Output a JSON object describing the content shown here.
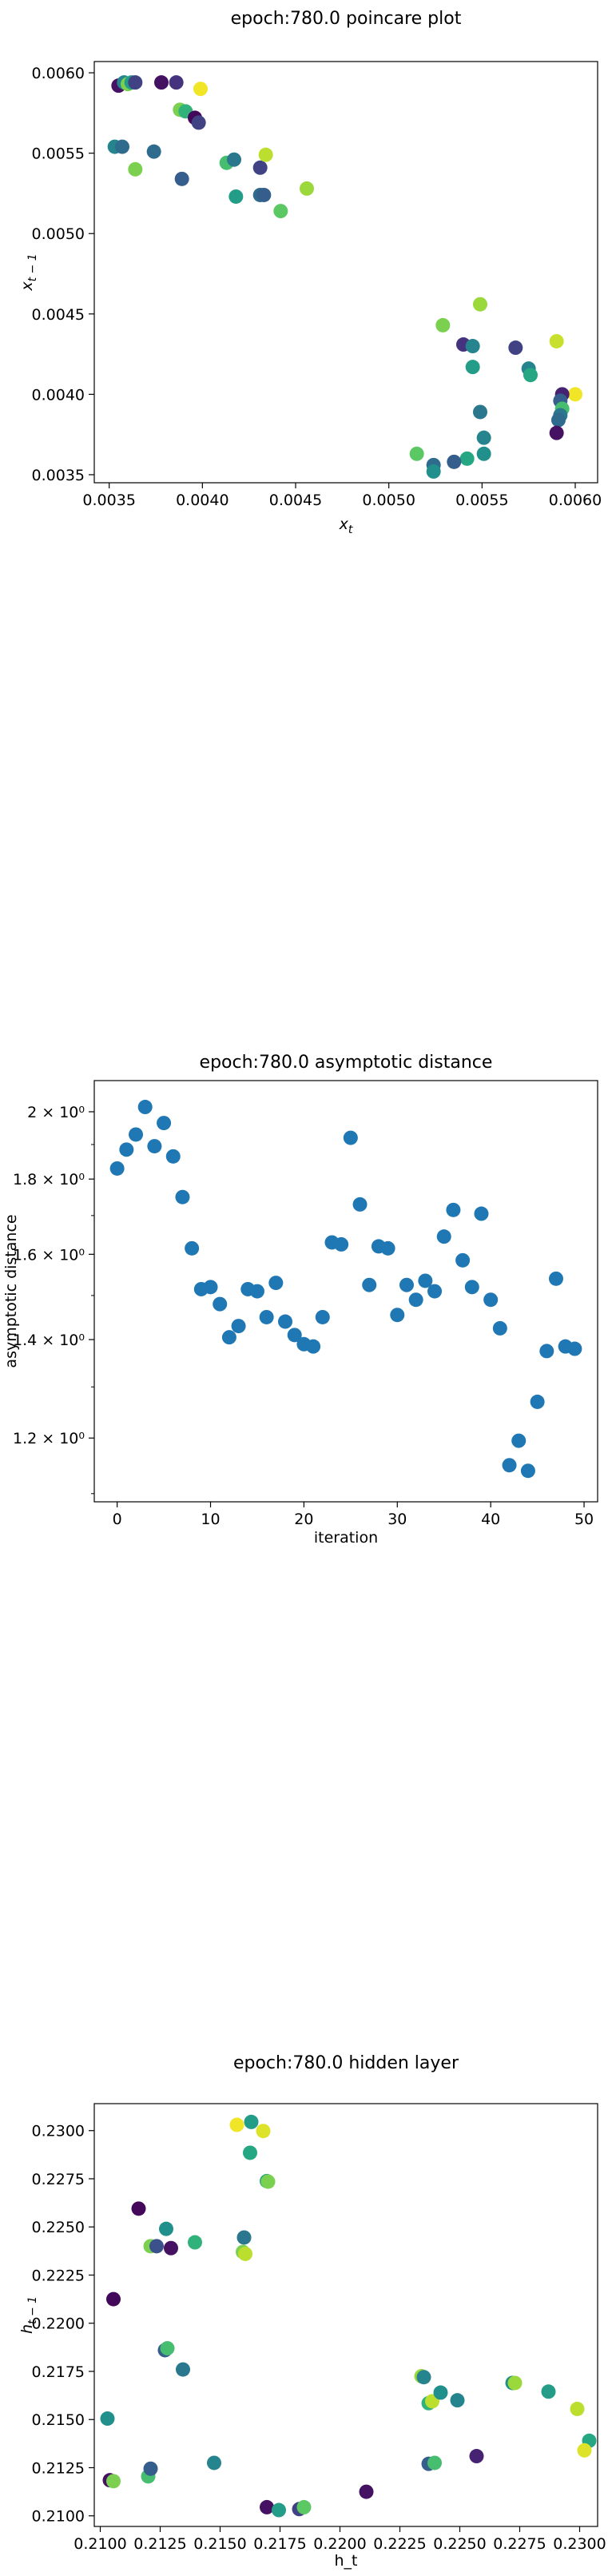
{
  "chart_data": [
    {
      "type": "scatter",
      "title": "epoch:780.0 poincare plot",
      "xlabel": "x_t",
      "ylabel": "x_{t-1}",
      "xlim": [
        0.00342,
        0.00612
      ],
      "ylim": [
        0.00345,
        0.00607
      ],
      "xticks": [
        0.0035,
        0.004,
        0.0045,
        0.005,
        0.0055,
        0.006
      ],
      "xtick_labels": [
        "0.0035",
        "0.0040",
        "0.0045",
        "0.0050",
        "0.0055",
        "0.0060"
      ],
      "yticks": [
        0.0035,
        0.004,
        0.0045,
        0.005,
        0.0055,
        0.006
      ],
      "ytick_labels": [
        "0.0035",
        "0.0040",
        "0.0045",
        "0.0050",
        "0.0055",
        "0.0060"
      ],
      "colormap": "viridis",
      "points": [
        {
          "x": 0.00355,
          "y": 0.00592,
          "c": 0.05
        },
        {
          "x": 0.00358,
          "y": 0.00594,
          "c": 0.45
        },
        {
          "x": 0.0036,
          "y": 0.00593,
          "c": 0.8
        },
        {
          "x": 0.00362,
          "y": 0.00594,
          "c": 0.55
        },
        {
          "x": 0.00364,
          "y": 0.00594,
          "c": 0.2
        },
        {
          "x": 0.00378,
          "y": 0.00594,
          "c": 0.05
        },
        {
          "x": 0.00386,
          "y": 0.00594,
          "c": 0.15
        },
        {
          "x": 0.00399,
          "y": 0.0059,
          "c": 0.98
        },
        {
          "x": 0.00388,
          "y": 0.00577,
          "c": 0.8
        },
        {
          "x": 0.00391,
          "y": 0.00576,
          "c": 0.65
        },
        {
          "x": 0.00396,
          "y": 0.00572,
          "c": 0.02
        },
        {
          "x": 0.00398,
          "y": 0.00569,
          "c": 0.2
        },
        {
          "x": 0.00353,
          "y": 0.00554,
          "c": 0.45
        },
        {
          "x": 0.00357,
          "y": 0.00554,
          "c": 0.35
        },
        {
          "x": 0.00364,
          "y": 0.0054,
          "c": 0.8
        },
        {
          "x": 0.00374,
          "y": 0.00551,
          "c": 0.35
        },
        {
          "x": 0.00389,
          "y": 0.00534,
          "c": 0.3
        },
        {
          "x": 0.00413,
          "y": 0.00544,
          "c": 0.7
        },
        {
          "x": 0.00417,
          "y": 0.00546,
          "c": 0.4
        },
        {
          "x": 0.00431,
          "y": 0.00541,
          "c": 0.2
        },
        {
          "x": 0.00434,
          "y": 0.00549,
          "c": 0.9
        },
        {
          "x": 0.00418,
          "y": 0.00523,
          "c": 0.55
        },
        {
          "x": 0.00431,
          "y": 0.00524,
          "c": 0.35
        },
        {
          "x": 0.00433,
          "y": 0.00524,
          "c": 0.3
        },
        {
          "x": 0.00442,
          "y": 0.00514,
          "c": 0.75
        },
        {
          "x": 0.00456,
          "y": 0.00528,
          "c": 0.85
        },
        {
          "x": 0.00549,
          "y": 0.00456,
          "c": 0.85
        },
        {
          "x": 0.00529,
          "y": 0.00443,
          "c": 0.8
        },
        {
          "x": 0.0054,
          "y": 0.00431,
          "c": 0.15
        },
        {
          "x": 0.00545,
          "y": 0.0043,
          "c": 0.45
        },
        {
          "x": 0.00568,
          "y": 0.00429,
          "c": 0.2
        },
        {
          "x": 0.0059,
          "y": 0.00433,
          "c": 0.92
        },
        {
          "x": 0.00545,
          "y": 0.00417,
          "c": 0.55
        },
        {
          "x": 0.00575,
          "y": 0.00416,
          "c": 0.45
        },
        {
          "x": 0.00576,
          "y": 0.00412,
          "c": 0.6
        },
        {
          "x": 0.006,
          "y": 0.004,
          "c": 0.98
        },
        {
          "x": 0.00593,
          "y": 0.004,
          "c": 0.1
        },
        {
          "x": 0.00592,
          "y": 0.00396,
          "c": 0.3
        },
        {
          "x": 0.00593,
          "y": 0.00391,
          "c": 0.7
        },
        {
          "x": 0.00592,
          "y": 0.00387,
          "c": 0.4
        },
        {
          "x": 0.00591,
          "y": 0.00384,
          "c": 0.35
        },
        {
          "x": 0.0059,
          "y": 0.00376,
          "c": 0.05
        },
        {
          "x": 0.00549,
          "y": 0.00389,
          "c": 0.4
        },
        {
          "x": 0.00551,
          "y": 0.00373,
          "c": 0.45
        },
        {
          "x": 0.00515,
          "y": 0.00363,
          "c": 0.75
        },
        {
          "x": 0.00542,
          "y": 0.0036,
          "c": 0.6
        },
        {
          "x": 0.00551,
          "y": 0.00363,
          "c": 0.5
        },
        {
          "x": 0.00535,
          "y": 0.00358,
          "c": 0.3
        },
        {
          "x": 0.00524,
          "y": 0.00356,
          "c": 0.35
        },
        {
          "x": 0.00524,
          "y": 0.00352,
          "c": 0.5
        }
      ]
    },
    {
      "type": "scatter",
      "title": "epoch:780.0 asymptotic distance",
      "xlabel": "iteration",
      "ylabel": "asymptotic distance",
      "yscale": "log",
      "xlim": [
        -2.45,
        51.45
      ],
      "ylim": [
        1.086,
        2.1
      ],
      "xticks": [
        0,
        10,
        20,
        30,
        40,
        50
      ],
      "xtick_labels": [
        "0",
        "10",
        "20",
        "30",
        "40",
        "50"
      ],
      "yticks": [
        1.2,
        1.4,
        1.6,
        1.8,
        2.0
      ],
      "ytick_labels": [
        "1.2 × 10⁰",
        "1.4 × 10⁰",
        "1.6 × 10⁰",
        "1.8 × 10⁰",
        "2 × 10⁰"
      ],
      "color": "#1f77b4",
      "x": [
        0,
        1,
        2,
        3,
        4,
        5,
        6,
        7,
        8,
        9,
        10,
        11,
        12,
        13,
        14,
        15,
        16,
        17,
        18,
        19,
        20,
        21,
        22,
        23,
        24,
        25,
        26,
        27,
        28,
        29,
        30,
        31,
        32,
        33,
        34,
        35,
        36,
        37,
        38,
        39,
        40,
        41,
        42,
        43,
        44,
        45,
        46,
        47,
        48,
        49
      ],
      "y": [
        1.83,
        1.885,
        1.93,
        2.015,
        1.895,
        1.965,
        1.865,
        1.75,
        1.615,
        1.515,
        1.52,
        1.48,
        1.405,
        1.43,
        1.515,
        1.51,
        1.45,
        1.53,
        1.44,
        1.41,
        1.39,
        1.385,
        1.45,
        1.63,
        1.625,
        1.92,
        1.73,
        1.525,
        1.62,
        1.615,
        1.455,
        1.525,
        1.49,
        1.535,
        1.51,
        1.645,
        1.715,
        1.585,
        1.52,
        1.705,
        1.49,
        1.425,
        1.15,
        1.195,
        1.14,
        1.27,
        1.375,
        1.54,
        1.385,
        1.38
      ]
    },
    {
      "type": "scatter",
      "title": "epoch:780.0 hidden layer",
      "xlabel": "h_t",
      "ylabel": "h_{t-1}",
      "xlim": [
        0.20975,
        0.23075
      ],
      "ylim": [
        0.20945,
        0.2314
      ],
      "xticks": [
        0.21,
        0.2125,
        0.215,
        0.2175,
        0.22,
        0.2225,
        0.225,
        0.2275,
        0.23
      ],
      "xtick_labels": [
        "0.2100",
        "0.2125",
        "0.2150",
        "0.2175",
        "0.2200",
        "0.2225",
        "0.2250",
        "0.2275",
        "0.2300"
      ],
      "yticks": [
        0.21,
        0.2125,
        0.215,
        0.2175,
        0.22,
        0.2225,
        0.225,
        0.2275,
        0.23
      ],
      "ytick_labels": [
        "0.2100",
        "0.2125",
        "0.2150",
        "0.2175",
        "0.2200",
        "0.2225",
        "0.2250",
        "0.2275",
        "0.2300"
      ],
      "colormap": "viridis",
      "points": [
        {
          "x": 0.2157,
          "y": 0.2303,
          "c": 0.98
        },
        {
          "x": 0.2163,
          "y": 0.23045,
          "c": 0.55
        },
        {
          "x": 0.2168,
          "y": 0.22998,
          "c": 0.95
        },
        {
          "x": 0.21625,
          "y": 0.22885,
          "c": 0.6
        },
        {
          "x": 0.21695,
          "y": 0.22738,
          "c": 0.6
        },
        {
          "x": 0.217,
          "y": 0.22735,
          "c": 0.8
        },
        {
          "x": 0.2116,
          "y": 0.22595,
          "c": 0.02
        },
        {
          "x": 0.21275,
          "y": 0.2249,
          "c": 0.5
        },
        {
          "x": 0.2121,
          "y": 0.224,
          "c": 0.8
        },
        {
          "x": 0.21235,
          "y": 0.224,
          "c": 0.25
        },
        {
          "x": 0.21295,
          "y": 0.2239,
          "c": 0.05
        },
        {
          "x": 0.21395,
          "y": 0.2242,
          "c": 0.65
        },
        {
          "x": 0.216,
          "y": 0.22445,
          "c": 0.4
        },
        {
          "x": 0.21595,
          "y": 0.2237,
          "c": 0.8
        },
        {
          "x": 0.21605,
          "y": 0.2236,
          "c": 0.9
        },
        {
          "x": 0.21055,
          "y": 0.22125,
          "c": 0.02
        },
        {
          "x": 0.2127,
          "y": 0.2186,
          "c": 0.3
        },
        {
          "x": 0.2128,
          "y": 0.2187,
          "c": 0.7
        },
        {
          "x": 0.21345,
          "y": 0.2176,
          "c": 0.4
        },
        {
          "x": 0.2103,
          "y": 0.21505,
          "c": 0.5
        },
        {
          "x": 0.2104,
          "y": 0.21185,
          "c": 0.05
        },
        {
          "x": 0.21055,
          "y": 0.2118,
          "c": 0.8
        },
        {
          "x": 0.212,
          "y": 0.21205,
          "c": 0.7
        },
        {
          "x": 0.2121,
          "y": 0.21245,
          "c": 0.3
        },
        {
          "x": 0.21475,
          "y": 0.21275,
          "c": 0.45
        },
        {
          "x": 0.21695,
          "y": 0.21045,
          "c": 0.05
        },
        {
          "x": 0.21745,
          "y": 0.2103,
          "c": 0.55
        },
        {
          "x": 0.2183,
          "y": 0.21035,
          "c": 0.2
        },
        {
          "x": 0.2185,
          "y": 0.21045,
          "c": 0.75
        },
        {
          "x": 0.2211,
          "y": 0.21125,
          "c": 0.05
        },
        {
          "x": 0.2234,
          "y": 0.21725,
          "c": 0.85
        },
        {
          "x": 0.2235,
          "y": 0.2172,
          "c": 0.45
        },
        {
          "x": 0.2237,
          "y": 0.21585,
          "c": 0.65
        },
        {
          "x": 0.22385,
          "y": 0.21595,
          "c": 0.9
        },
        {
          "x": 0.2242,
          "y": 0.2164,
          "c": 0.5
        },
        {
          "x": 0.2249,
          "y": 0.216,
          "c": 0.45
        },
        {
          "x": 0.2237,
          "y": 0.2127,
          "c": 0.3
        },
        {
          "x": 0.22395,
          "y": 0.21275,
          "c": 0.7
        },
        {
          "x": 0.2257,
          "y": 0.2131,
          "c": 0.1
        },
        {
          "x": 0.2272,
          "y": 0.2169,
          "c": 0.5
        },
        {
          "x": 0.2273,
          "y": 0.2169,
          "c": 0.85
        },
        {
          "x": 0.2287,
          "y": 0.21645,
          "c": 0.55
        },
        {
          "x": 0.2299,
          "y": 0.21555,
          "c": 0.9
        },
        {
          "x": 0.2304,
          "y": 0.2139,
          "c": 0.6
        },
        {
          "x": 0.2302,
          "y": 0.2134,
          "c": 0.95
        }
      ]
    }
  ]
}
